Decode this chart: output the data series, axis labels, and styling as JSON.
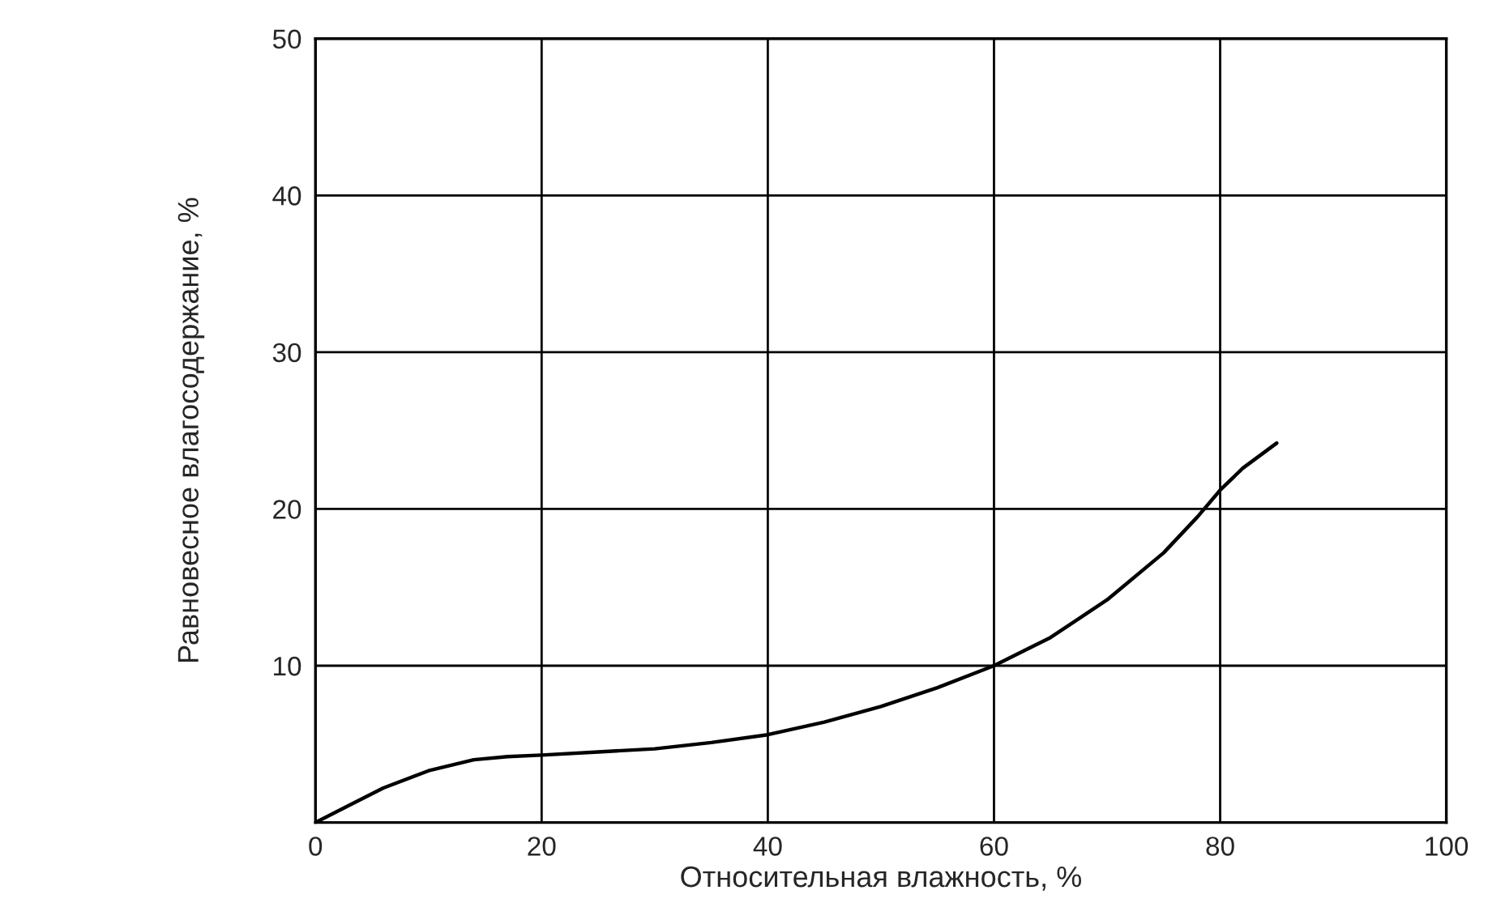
{
  "chart_data": {
    "type": "line",
    "xlabel": "Относительная влажность, %",
    "ylabel": "Равновесное влагосодержание, %",
    "xlim": [
      0,
      100
    ],
    "ylim": [
      0,
      50
    ],
    "xticks": [
      0,
      20,
      40,
      60,
      80,
      100
    ],
    "yticks": [
      {
        "value": 0,
        "label": null
      },
      10,
      20,
      30,
      40,
      50
    ],
    "grid": true,
    "series": [
      {
        "color": "#000000",
        "x": [
          0,
          3,
          6,
          10,
          14,
          17,
          20,
          25,
          30,
          35,
          40,
          45,
          50,
          55,
          60,
          65,
          70,
          75,
          78,
          80,
          82,
          85
        ],
        "values": [
          0,
          1.1,
          2.2,
          3.3,
          4.0,
          4.2,
          4.3,
          4.5,
          4.7,
          5.1,
          5.6,
          6.4,
          7.4,
          8.6,
          10,
          11.8,
          14.2,
          17.2,
          19.5,
          21.2,
          22.6,
          24.2
        ]
      }
    ]
  }
}
